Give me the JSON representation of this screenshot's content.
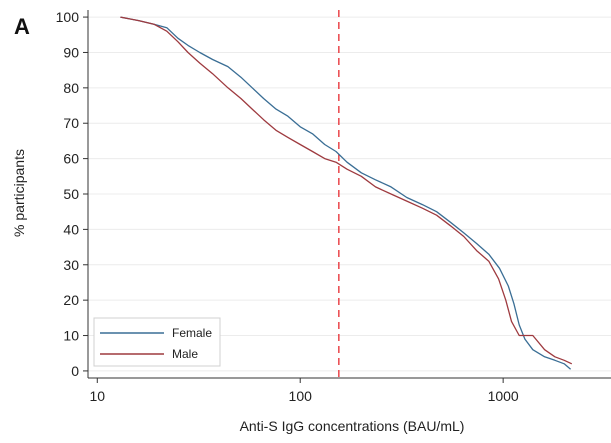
{
  "panel_label": "A",
  "colors": {
    "female": "#3a6e95",
    "male": "#9e3a3f",
    "reference_line": "#e8383d",
    "grid": "#ececec",
    "axis": "#333333"
  },
  "chart_data": {
    "type": "line",
    "title": "",
    "xlabel": "Anti-S IgG concentrations (BAU/mL)",
    "ylabel": "% participants",
    "x_scale": "log",
    "xlim": [
      9,
      3400
    ],
    "ylim": [
      -2,
      102
    ],
    "x_ticks": [
      10,
      100,
      1000
    ],
    "x_tick_labels": [
      "10",
      "100",
      "1000"
    ],
    "y_ticks": [
      0,
      10,
      20,
      30,
      40,
      50,
      60,
      70,
      80,
      90,
      100
    ],
    "y_tick_labels": [
      "0",
      "10",
      "20",
      "30",
      "40",
      "50",
      "60",
      "70",
      "80",
      "90",
      "100"
    ],
    "grid": "horizontal",
    "legend_position": "bottom-left",
    "reference_line": {
      "x": 155,
      "style": "dashed"
    },
    "series": [
      {
        "name": "Female",
        "color": "#3a6e95",
        "points": [
          [
            13,
            100
          ],
          [
            16,
            99
          ],
          [
            19,
            98
          ],
          [
            22,
            97
          ],
          [
            25,
            94
          ],
          [
            28,
            92
          ],
          [
            32,
            90
          ],
          [
            37,
            88
          ],
          [
            44,
            86
          ],
          [
            51,
            83
          ],
          [
            58,
            80
          ],
          [
            66,
            77
          ],
          [
            76,
            74
          ],
          [
            87,
            72
          ],
          [
            100,
            69
          ],
          [
            115,
            67
          ],
          [
            132,
            64
          ],
          [
            150,
            62
          ],
          [
            170,
            59
          ],
          [
            200,
            56
          ],
          [
            235,
            54
          ],
          [
            280,
            52
          ],
          [
            335,
            49
          ],
          [
            400,
            47
          ],
          [
            470,
            45
          ],
          [
            550,
            42
          ],
          [
            640,
            39
          ],
          [
            740,
            36
          ],
          [
            850,
            33
          ],
          [
            960,
            29
          ],
          [
            1060,
            24
          ],
          [
            1130,
            19
          ],
          [
            1200,
            13
          ],
          [
            1280,
            9
          ],
          [
            1400,
            6
          ],
          [
            1600,
            4
          ],
          [
            1800,
            3
          ],
          [
            2000,
            2
          ],
          [
            2150,
            0.5
          ]
        ]
      },
      {
        "name": "Male",
        "color": "#9e3a3f",
        "points": [
          [
            13,
            100
          ],
          [
            16,
            99
          ],
          [
            19,
            98
          ],
          [
            22,
            96
          ],
          [
            25,
            93
          ],
          [
            28,
            90
          ],
          [
            32,
            87
          ],
          [
            37,
            84
          ],
          [
            44,
            80
          ],
          [
            51,
            77
          ],
          [
            58,
            74
          ],
          [
            66,
            71
          ],
          [
            76,
            68
          ],
          [
            87,
            66
          ],
          [
            100,
            64
          ],
          [
            115,
            62
          ],
          [
            132,
            60
          ],
          [
            150,
            59
          ],
          [
            170,
            57
          ],
          [
            200,
            55
          ],
          [
            235,
            52
          ],
          [
            280,
            50
          ],
          [
            335,
            48
          ],
          [
            400,
            46
          ],
          [
            470,
            44
          ],
          [
            550,
            41
          ],
          [
            640,
            38
          ],
          [
            740,
            34
          ],
          [
            850,
            31
          ],
          [
            950,
            26
          ],
          [
            1030,
            20
          ],
          [
            1100,
            14
          ],
          [
            1200,
            10
          ],
          [
            1400,
            10
          ],
          [
            1600,
            6
          ],
          [
            1800,
            4
          ],
          [
            2000,
            3
          ],
          [
            2180,
            2
          ]
        ]
      }
    ]
  }
}
